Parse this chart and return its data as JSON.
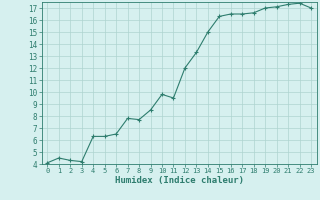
{
  "xlabel": "Humidex (Indice chaleur)",
  "ylabel": "",
  "x_values": [
    0,
    1,
    2,
    3,
    4,
    5,
    6,
    7,
    8,
    9,
    10,
    11,
    12,
    13,
    14,
    15,
    16,
    17,
    18,
    19,
    20,
    21,
    22,
    23
  ],
  "y_values": [
    4.1,
    4.5,
    4.3,
    4.2,
    6.3,
    6.3,
    6.5,
    7.8,
    7.7,
    8.5,
    9.8,
    9.5,
    12.0,
    13.3,
    15.0,
    16.3,
    16.5,
    16.5,
    16.6,
    17.0,
    17.1,
    17.3,
    17.4,
    17.0
  ],
  "line_color": "#2e7d6e",
  "marker": "+",
  "marker_size": 3,
  "marker_linewidth": 0.8,
  "line_width": 0.8,
  "bg_color": "#d6f0ef",
  "grid_color": "#aed4d0",
  "tick_color": "#2e7d6e",
  "label_color": "#2e7d6e",
  "ylim": [
    4,
    17.5
  ],
  "xlim": [
    -0.5,
    23.5
  ],
  "yticks": [
    4,
    5,
    6,
    7,
    8,
    9,
    10,
    11,
    12,
    13,
    14,
    15,
    16,
    17
  ],
  "xticks": [
    0,
    1,
    2,
    3,
    4,
    5,
    6,
    7,
    8,
    9,
    10,
    11,
    12,
    13,
    14,
    15,
    16,
    17,
    18,
    19,
    20,
    21,
    22,
    23
  ],
  "xlabel_fontsize": 6.5,
  "tick_fontsize_x": 5.0,
  "tick_fontsize_y": 5.5,
  "font_family": "monospace"
}
